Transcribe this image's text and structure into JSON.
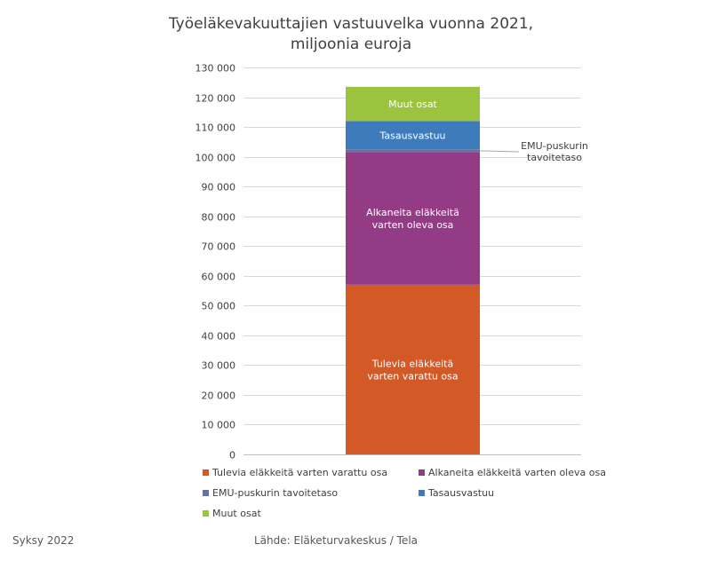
{
  "chart_data": {
    "type": "bar",
    "stacked": true,
    "title_line1": "Työeläkevakuuttajien vastuuvelka vuonna 2021,",
    "title_line2": "miljoonia euroja",
    "ylim": [
      0,
      130000
    ],
    "yticks": [
      0,
      10000,
      20000,
      30000,
      40000,
      50000,
      60000,
      70000,
      80000,
      90000,
      100000,
      110000,
      120000,
      130000
    ],
    "ytick_labels": [
      "0",
      "10 000",
      "20 000",
      "30 000",
      "40 000",
      "50 000",
      "60 000",
      "70 000",
      "80 000",
      "90 000",
      "100 000",
      "110 000",
      "120 000",
      "130 000"
    ],
    "grid": true,
    "legend_position": "bottom",
    "series": [
      {
        "name": "Tulevia eläkkeitä varten varattu osa",
        "value": 57000,
        "color": "#d35a27",
        "bar_label_lines": [
          "Tulevia eläkkeitä",
          "varten varattu osa"
        ]
      },
      {
        "name": "Alkaneita eläkkeitä varten oleva osa",
        "value": 44500,
        "color": "#943b85",
        "bar_label_lines": [
          "Alkaneita eläkkeitä",
          "varten oleva osa"
        ]
      },
      {
        "name": "EMU-puskurin tavoitetaso",
        "value": 1000,
        "color": "#6b6fa0",
        "bar_label_lines": []
      },
      {
        "name": "Tasausvastuu",
        "value": 9500,
        "color": "#3e7bbd",
        "bar_label_lines": [
          "Tasausvastuu"
        ]
      },
      {
        "name": "Muut osat",
        "value": 11500,
        "color": "#9cc33d",
        "bar_label_lines": [
          "Muut osat"
        ]
      }
    ],
    "annotation": {
      "lines": [
        "EMU-puskurin",
        "tavoitetaso"
      ],
      "target_value": 102000
    }
  },
  "footer": {
    "season": "Syksy 2022",
    "source": "Lähde: Eläketurvakeskus / Tela"
  }
}
